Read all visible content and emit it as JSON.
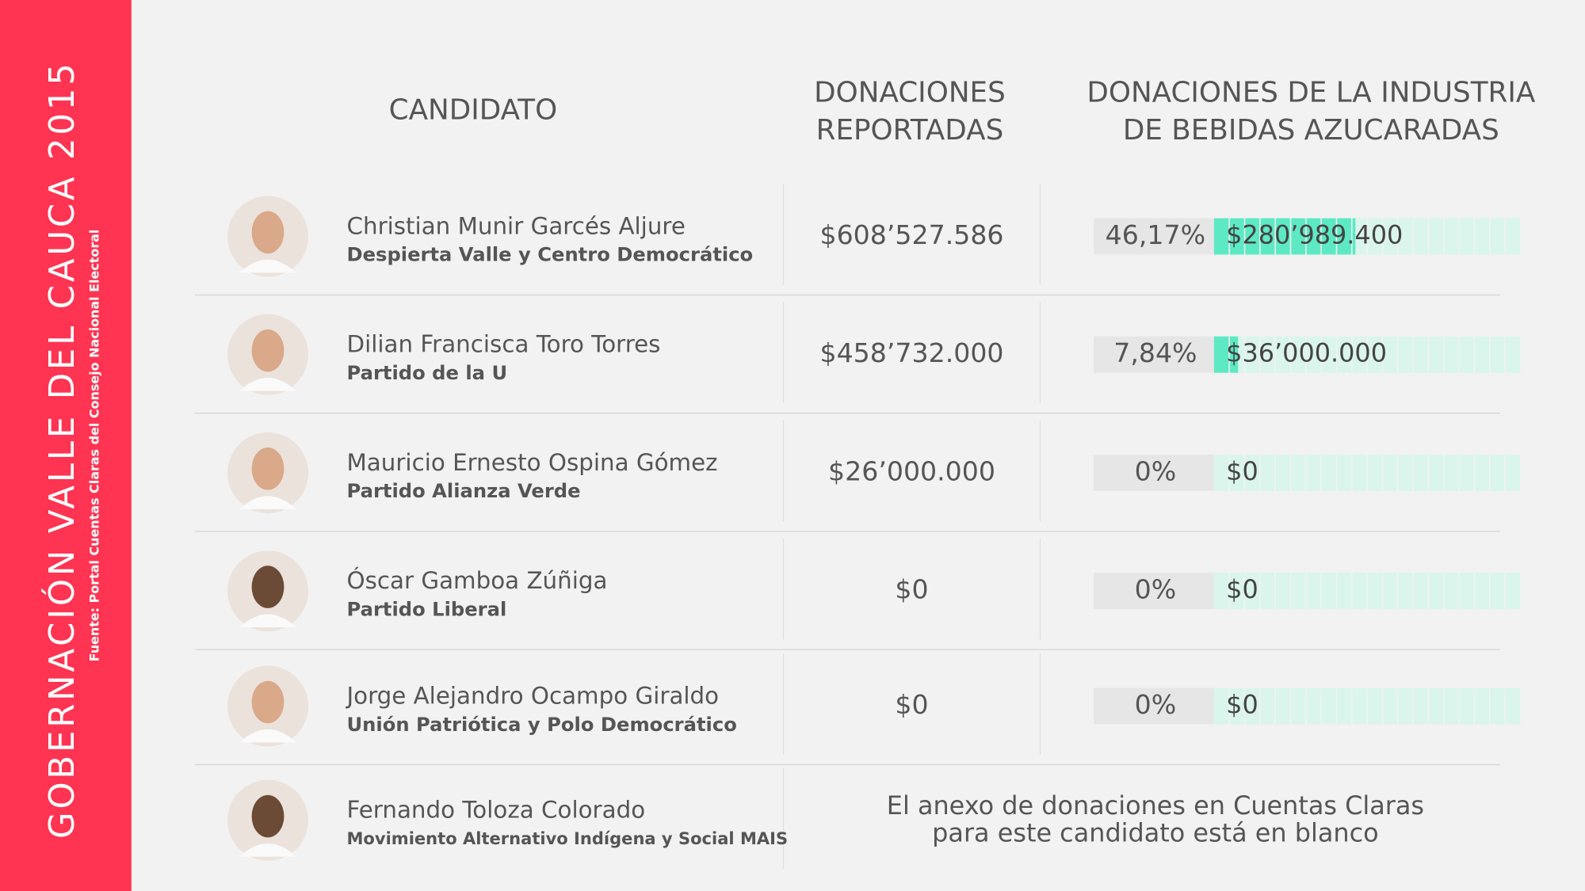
{
  "sidebar": {
    "title": "GOBERNACIÓN VALLE DEL CAUCA 2015",
    "source": "Fuente: Portal Cuentas Claras del Consejo Nacional Electoral"
  },
  "table": {
    "columns": [
      [
        "CANDIDATO"
      ],
      [
        "DONACIONES",
        "REPORTADAS"
      ],
      [
        "DONACIONES DE LA INDUSTRIA",
        "DE BEBIDAS AZUCARADAS"
      ]
    ],
    "rows": [
      {
        "name": "Christian Munir Garcés Aljure",
        "party": "Despierta Valle y Centro Democrático",
        "donations": "$608’527.586",
        "percent": {
          "value": 46.17,
          "label": "46,17%"
        },
        "industry": "$280’989.400"
      },
      {
        "name": "Dilian Francisca Toro Torres",
        "party": "Partido de la U",
        "donations": "$458’732.000",
        "percent": {
          "value": 7.84,
          "label": "7,84%"
        },
        "industry": "$36’000.000"
      },
      {
        "name": "Mauricio Ernesto Ospina Gómez",
        "party": "Partido Alianza Verde",
        "donations": "$26’000.000",
        "percent": {
          "value": 0,
          "label": "0%"
        },
        "industry": "$0"
      },
      {
        "name": "Óscar Gamboa Zúñiga",
        "party": "Partido Liberal",
        "donations": "$0",
        "percent": {
          "value": 0,
          "label": "0%"
        },
        "industry": "$0"
      },
      {
        "name": "Jorge Alejandro Ocampo Giraldo",
        "party": "Unión Patriótica y Polo Democrático",
        "donations": "$0",
        "percent": {
          "value": 0,
          "label": "0%"
        },
        "industry": "$0"
      },
      {
        "name": "Fernando Toloza Colorado",
        "party": "Movimiento Alternativo Indígena y Social MAIS",
        "note": [
          "El anexo de donaciones en Cuentas Claras",
          "para este candidato está en blanco"
        ]
      }
    ]
  }
}
